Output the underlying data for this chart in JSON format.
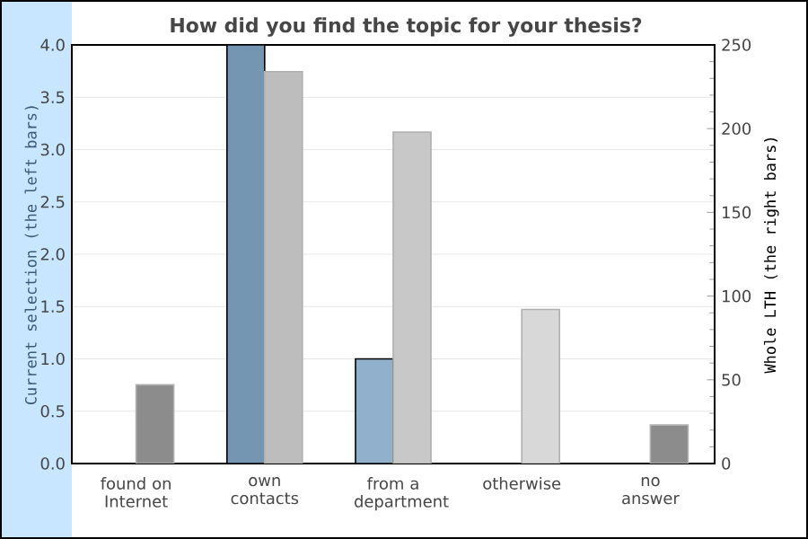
{
  "chart_data": {
    "type": "bar",
    "title": "How did you find the topic for your thesis?",
    "categories": [
      "found on Internet",
      "own contacts",
      "from a department",
      "otherwise",
      "no answer"
    ],
    "ylabel": "Current selection (the left bars)",
    "y2label": "Whole LTH (the right bars)",
    "ylim": [
      0,
      4
    ],
    "yticks": [
      {
        "value": 0,
        "label": "0.0"
      },
      {
        "value": 0.5,
        "label": "0.5"
      },
      {
        "value": 1,
        "label": "1.0"
      },
      {
        "value": 1.5,
        "label": "1.5"
      },
      {
        "value": 2,
        "label": "2.0"
      },
      {
        "value": 2.5,
        "label": "2.5"
      },
      {
        "value": 3,
        "label": "3.0"
      },
      {
        "value": 3.5,
        "label": "3.5"
      },
      {
        "value": 4,
        "label": "4.0"
      }
    ],
    "y2lim": [
      0,
      250
    ],
    "y2ticks": [
      0,
      50,
      100,
      150,
      200,
      250
    ],
    "grid": "y",
    "series": [
      {
        "axis": "y",
        "colors": [
          "#7496b2",
          "#7496b2",
          "#91b0cc",
          "#91b0cc",
          "#91b0cc"
        ],
        "values": [
          0,
          4,
          1,
          0,
          0
        ]
      },
      {
        "axis": "y2",
        "colors": [
          "#8c8c8c",
          "#bdbdbd",
          "#c8c8c8",
          "#d8d8d8",
          "#8c8c8c"
        ],
        "values": [
          47,
          234,
          198,
          92,
          23
        ]
      }
    ]
  }
}
